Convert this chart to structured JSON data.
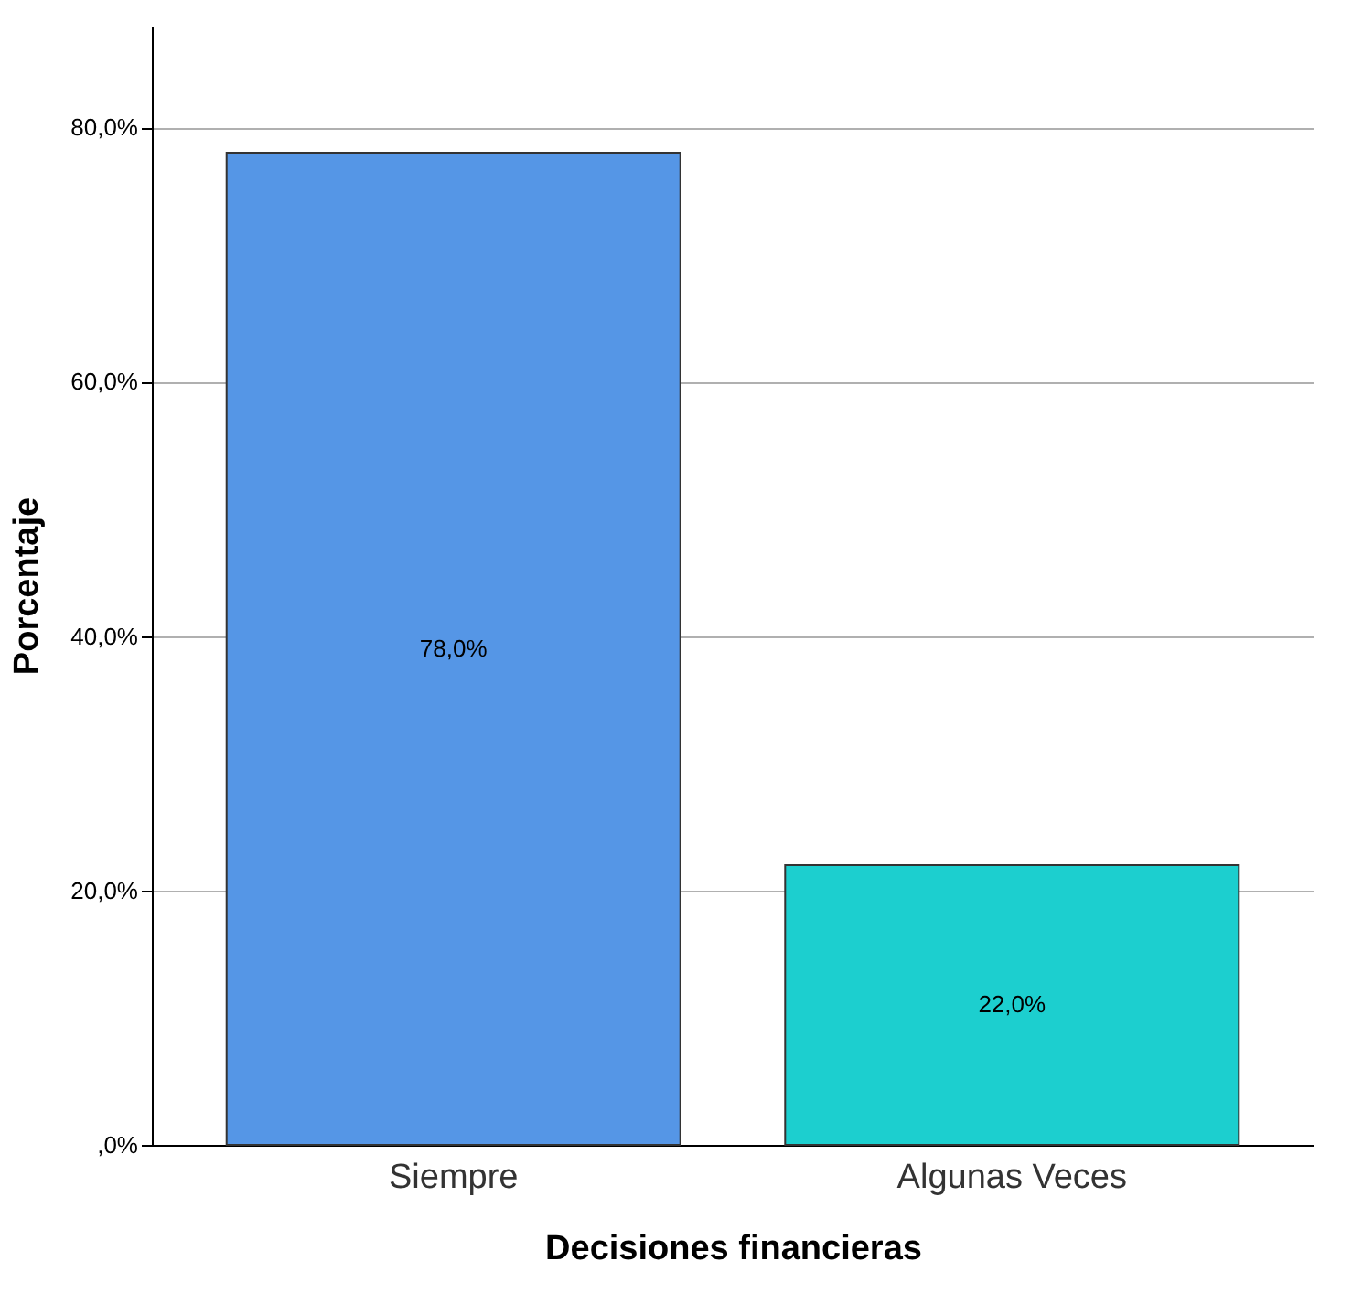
{
  "chart_data": {
    "type": "bar",
    "xlabel": "Decisiones financieras",
    "ylabel": "Porcentaje",
    "categories": [
      "Siempre",
      "Algunas Veces"
    ],
    "values": [
      78.0,
      22.0
    ],
    "colors": [
      "#5596e6",
      "#1ccfcf"
    ],
    "value_labels": [
      "78,0%",
      "22,0%"
    ],
    "ylim": [
      0,
      88
    ],
    "yticks": [
      {
        "value": 0,
        "label": ",0%"
      },
      {
        "value": 20,
        "label": "20,0%"
      },
      {
        "value": 40,
        "label": "40,0%"
      },
      {
        "value": 60,
        "label": "60,0%"
      },
      {
        "value": 80,
        "label": "80,0%"
      }
    ],
    "grid": "y"
  }
}
